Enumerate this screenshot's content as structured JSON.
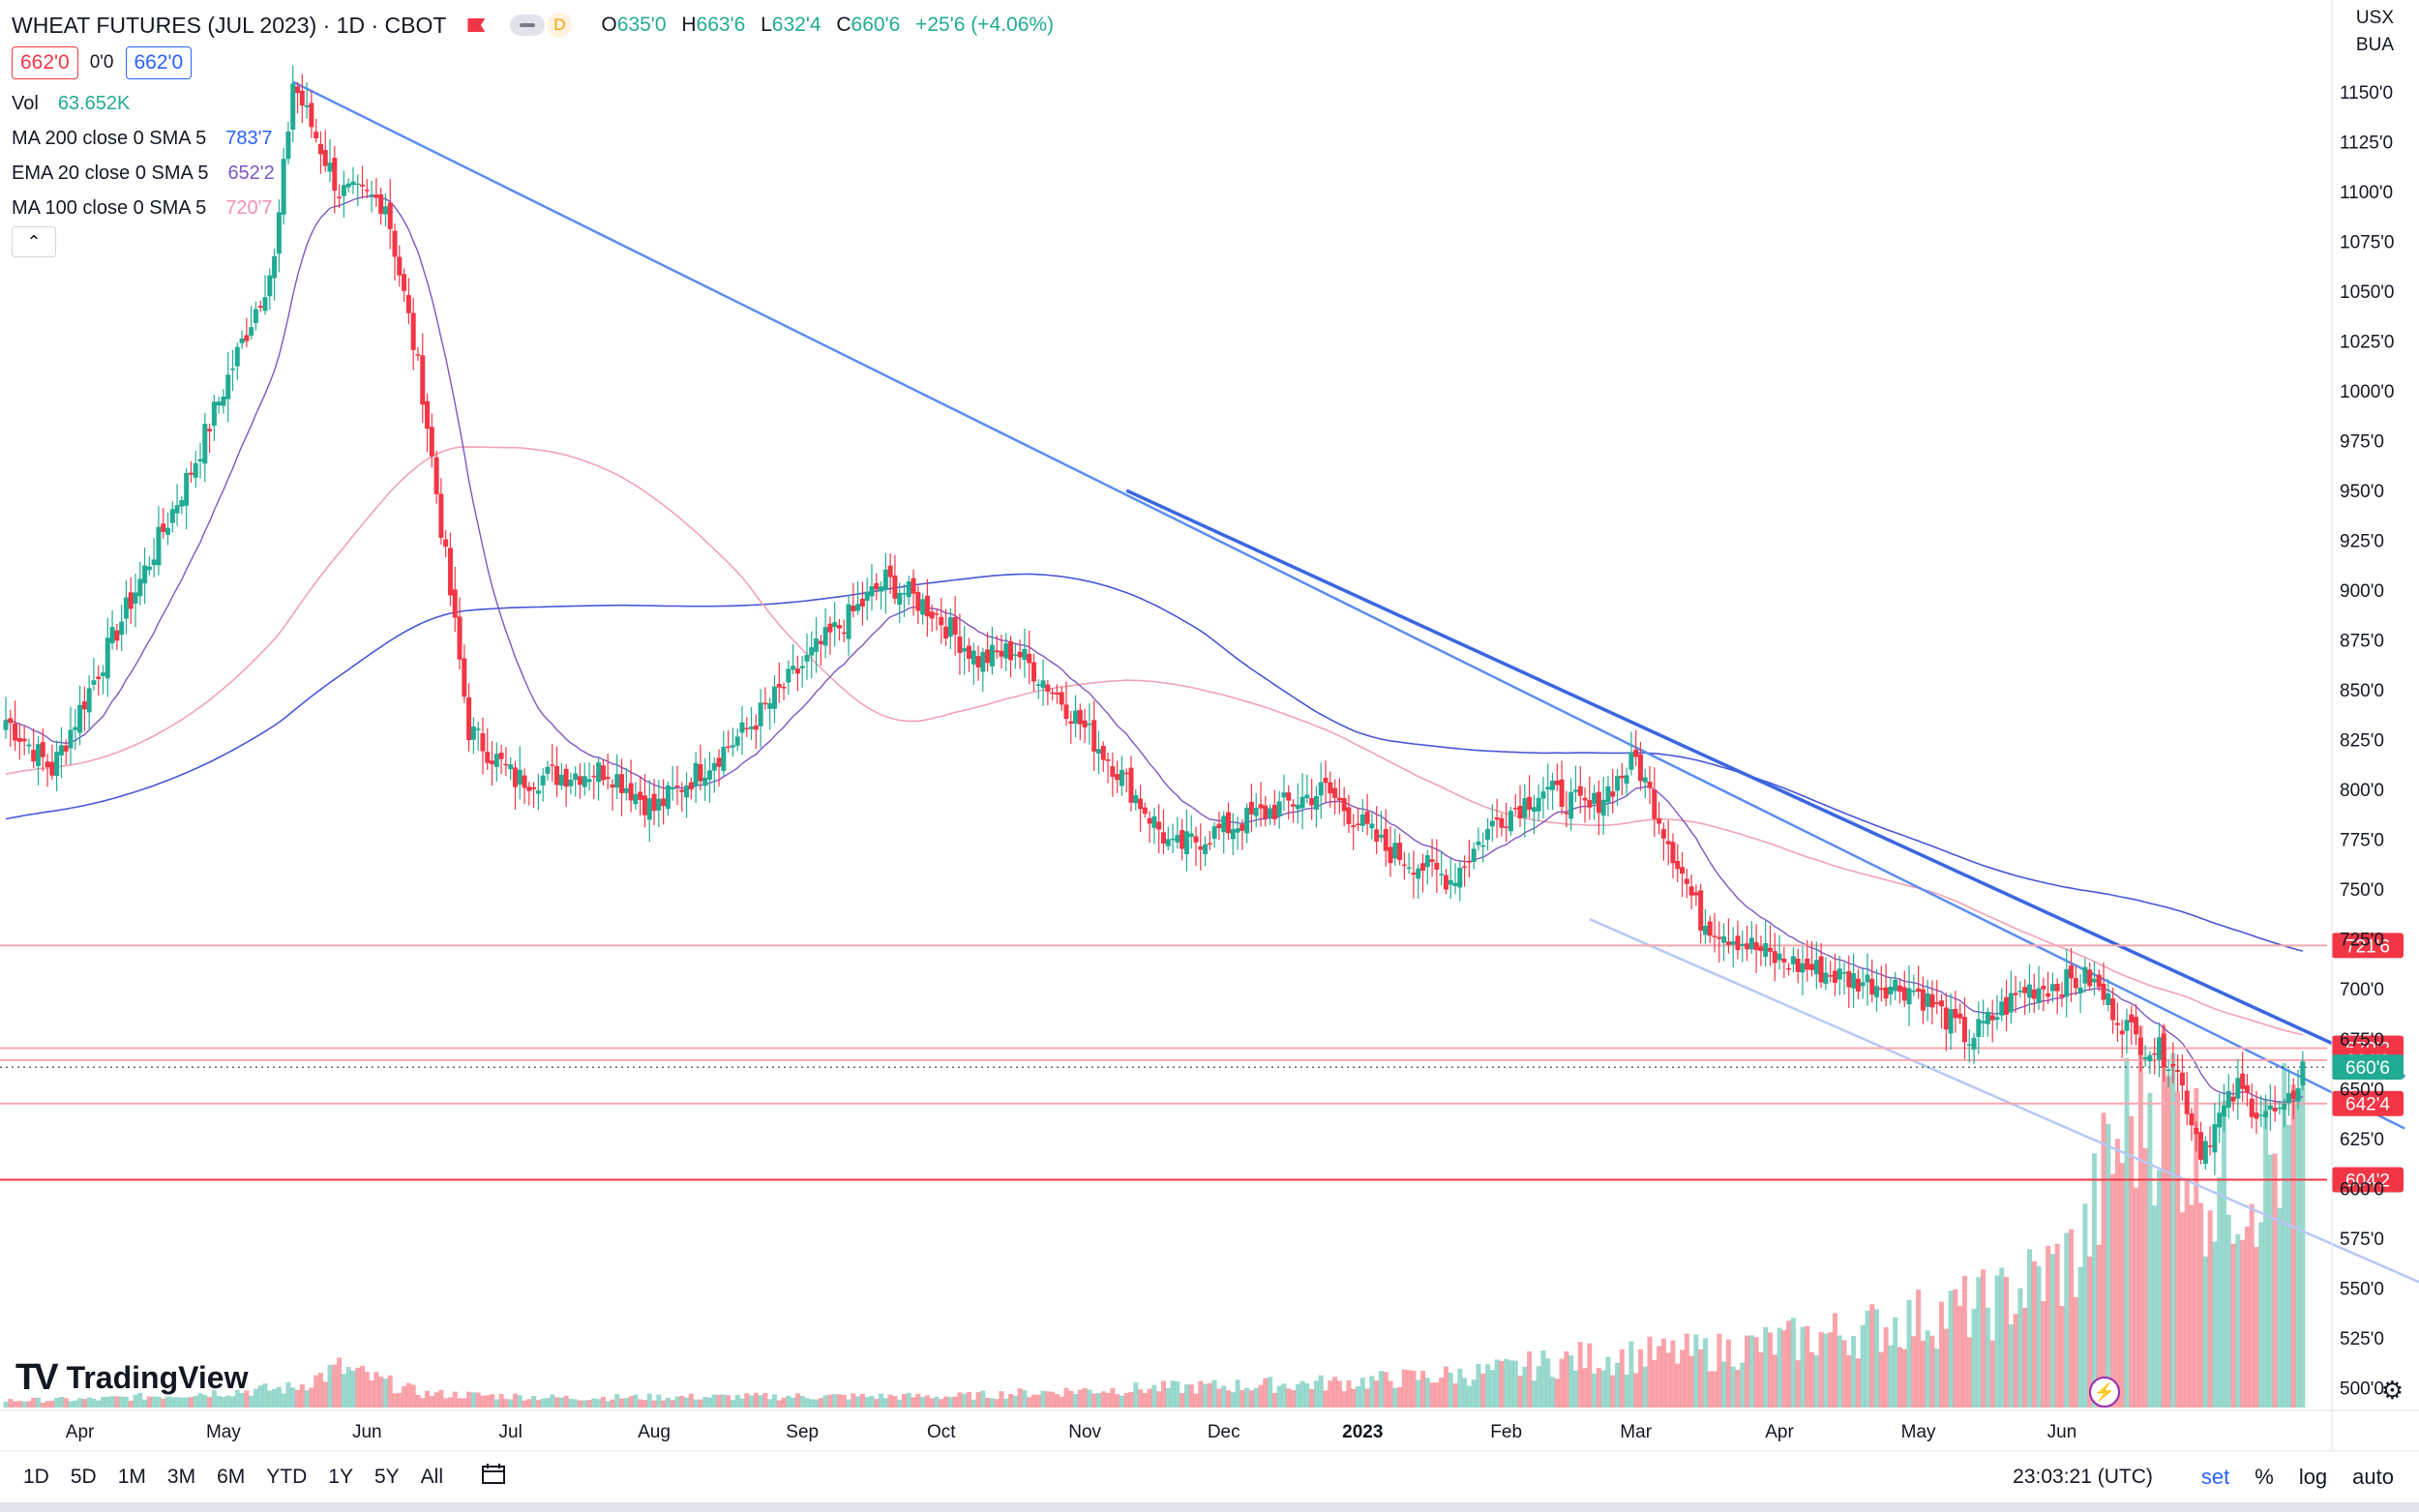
{
  "header": {
    "symbol": "WHEAT FUTURES (JUL 2023) · 1D · CBOT",
    "delay_badge": "D",
    "open_label": "O",
    "open": "635'0",
    "high_label": "H",
    "high": "663'6",
    "low_label": "L",
    "low": "632'4",
    "close_label": "C",
    "close": "660'6",
    "change": "+25'6 (+4.06%)"
  },
  "quote": {
    "sell": "662'0",
    "spread": "0'0",
    "buy": "662'0"
  },
  "indicators": [
    {
      "label": "Vol",
      "value": "63.652K",
      "color": "#22ab94"
    },
    {
      "label": "MA 200 close 0 SMA 5",
      "value": "783'7",
      "color": "#2962ff"
    },
    {
      "label": "EMA 20 close 0 SMA 5",
      "value": "652'2",
      "color": "#7e57c2"
    },
    {
      "label": "MA 100 close 0 SMA 5",
      "value": "720'7",
      "color": "#f48fb1"
    }
  ],
  "collapse_glyph": "⌃",
  "currency": {
    "unit": "USX",
    "exchange": "BUA"
  },
  "watermark": {
    "text": "TradingView"
  },
  "bottom_bar": {
    "ranges": [
      "1D",
      "5D",
      "1M",
      "3M",
      "6M",
      "YTD",
      "1Y",
      "5Y",
      "All"
    ],
    "time": "23:03:21 (UTC)",
    "controls": [
      "set",
      "%",
      "log",
      "auto"
    ]
  },
  "chart_data": {
    "type": "candlestick",
    "price_unit": "cents/bushel (eighths)",
    "y_ticks": [
      "1150'0",
      "1125'0",
      "1100'0",
      "1075'0",
      "1050'0",
      "1025'0",
      "1000'0",
      "975'0",
      "950'0",
      "925'0",
      "900'0",
      "875'0",
      "850'0",
      "825'0",
      "800'0",
      "775'0",
      "750'0",
      "725'0",
      "700'0",
      "675'0",
      "650'0",
      "625'0",
      "600'0",
      "575'0",
      "550'0",
      "525'0",
      "500'0"
    ],
    "ylim": [
      490,
      1165
    ],
    "x_labels": [
      "Apr",
      "May",
      "Jun",
      "Jul",
      "Aug",
      "Sep",
      "Oct",
      "Nov",
      "Dec",
      "2023",
      "Feb",
      "Mar",
      "Apr",
      "May",
      "Jun"
    ],
    "price_anchors": [
      [
        0,
        835
      ],
      [
        10,
        810
      ],
      [
        22,
        870
      ],
      [
        40,
        960
      ],
      [
        58,
        1065
      ],
      [
        62,
        1155
      ],
      [
        72,
        1100
      ],
      [
        82,
        1095
      ],
      [
        90,
        1000
      ],
      [
        100,
        830
      ],
      [
        110,
        805
      ],
      [
        130,
        810
      ],
      [
        140,
        790
      ],
      [
        160,
        830
      ],
      [
        175,
        870
      ],
      [
        190,
        905
      ],
      [
        200,
        890
      ],
      [
        210,
        865
      ],
      [
        218,
        870
      ],
      [
        228,
        845
      ],
      [
        240,
        810
      ],
      [
        252,
        770
      ],
      [
        268,
        785
      ],
      [
        285,
        800
      ],
      [
        298,
        770
      ],
      [
        312,
        755
      ],
      [
        322,
        785
      ],
      [
        332,
        800
      ],
      [
        342,
        790
      ],
      [
        352,
        815
      ],
      [
        366,
        735
      ],
      [
        382,
        715
      ],
      [
        398,
        705
      ],
      [
        412,
        700
      ],
      [
        424,
        675
      ],
      [
        436,
        700
      ],
      [
        450,
        705
      ],
      [
        460,
        675
      ],
      [
        468,
        665
      ],
      [
        474,
        620
      ],
      [
        482,
        650
      ],
      [
        486,
        640
      ],
      [
        492,
        636
      ],
      [
        496,
        661
      ]
    ],
    "volume_anchors": [
      [
        0,
        5
      ],
      [
        20,
        6
      ],
      [
        62,
        14
      ],
      [
        72,
        28
      ],
      [
        90,
        10
      ],
      [
        120,
        7
      ],
      [
        170,
        8
      ],
      [
        205,
        8
      ],
      [
        230,
        12
      ],
      [
        260,
        15
      ],
      [
        290,
        18
      ],
      [
        320,
        25
      ],
      [
        340,
        35
      ],
      [
        370,
        40
      ],
      [
        400,
        55
      ],
      [
        430,
        75
      ],
      [
        448,
        110
      ],
      [
        455,
        180
      ],
      [
        462,
        230
      ],
      [
        468,
        220
      ],
      [
        476,
        160
      ],
      [
        486,
        170
      ],
      [
        490,
        180
      ],
      [
        496,
        200
      ]
    ],
    "volume_max": 260,
    "price_lines": [
      {
        "price": 721.75,
        "label": "721'6",
        "color": "#f7a8ae"
      },
      {
        "price": 670.25,
        "label": "670'2",
        "color": "#f7a8ae"
      },
      {
        "price": 664.25,
        "label": "664'2",
        "color": "#f7a8ae"
      },
      {
        "price": 642.5,
        "label": "642'4",
        "color": "#f7a8ae"
      },
      {
        "price": 604.25,
        "label": "604'2",
        "color": "#f23645"
      }
    ],
    "last_price": {
      "price": 660.75,
      "label": "660'6",
      "color": "#22ab94"
    },
    "trendlines": [
      {
        "from": [
          62,
          1155
        ],
        "to": [
          518,
          630
        ],
        "color": "#5b8def",
        "width": 2.5
      },
      {
        "from": [
          242,
          950
        ],
        "to": [
          518,
          656
        ],
        "color": "#3a66e0",
        "width": 3.5
      },
      {
        "from": [
          342,
          735
        ],
        "to": [
          524,
          550
        ],
        "color": "#b7c8f5",
        "width": 2.5
      }
    ]
  }
}
